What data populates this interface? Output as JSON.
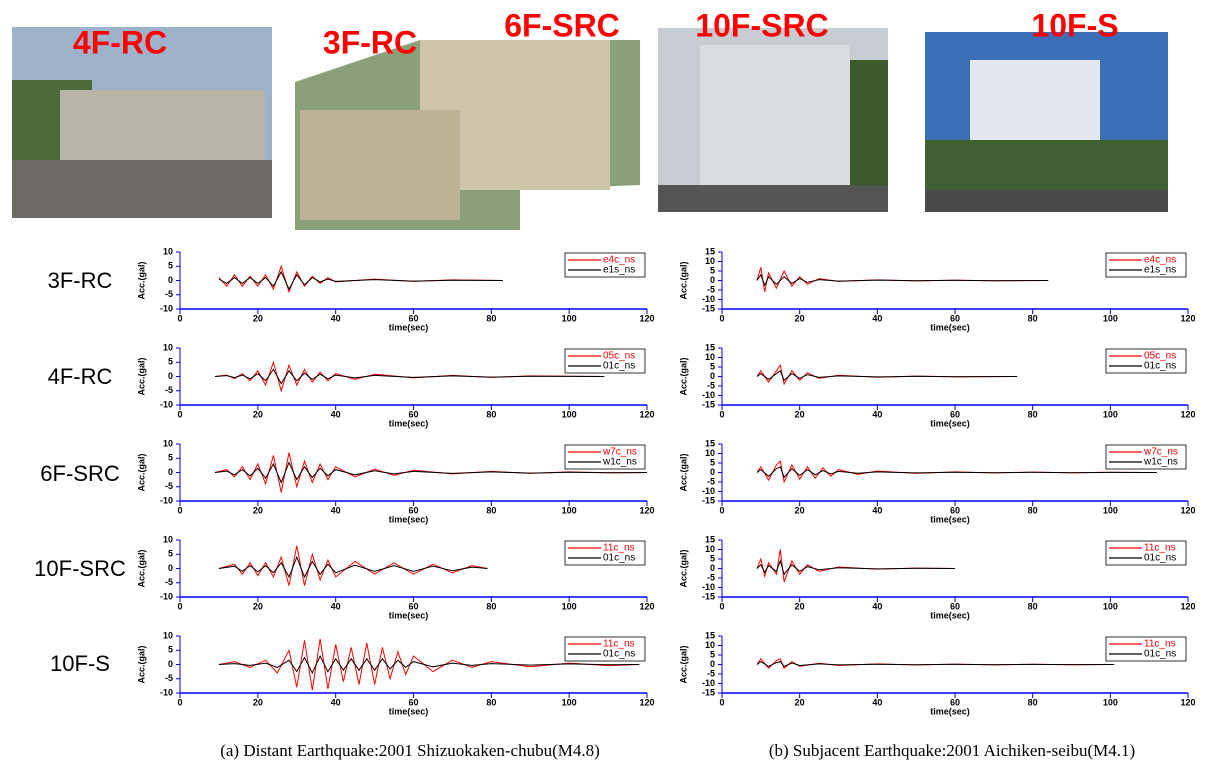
{
  "photos": [
    {
      "label": "4F-RC"
    },
    {
      "label": "3F-RC"
    },
    {
      "label": "6F-SRC"
    },
    {
      "label": "10F-SRC"
    },
    {
      "label": "10F-S"
    }
  ],
  "row_labels": [
    "3F-RC",
    "4F-RC",
    "6F-SRC",
    "10F-SRC",
    "10F-S"
  ],
  "captions": [
    "(a) Distant Earthquake:2001 Shizuokaken-chubu(M4.8)",
    "(b) Subjacent Earthquake:2001 Aichiken-seibu(M4.1)"
  ],
  "chart_data": [
    {
      "type": "line",
      "xlabel": "time(sec)",
      "ylabel": "Acc.(gal)",
      "xlim": [
        0,
        120
      ],
      "xticks": [
        0,
        20,
        40,
        60,
        80,
        100,
        120
      ],
      "ylim": [
        -10,
        10
      ],
      "yticks": [
        -10,
        -5,
        0,
        5,
        10
      ],
      "legend": "upper right",
      "x": [
        10,
        12,
        14,
        16,
        18,
        20,
        22,
        24,
        26,
        28,
        30,
        32,
        34,
        36,
        38,
        40,
        50,
        60,
        70,
        83
      ],
      "series": [
        {
          "name": "e4c_ns",
          "color": "#ff0000",
          "values": [
            1,
            -2,
            2,
            -2,
            1.5,
            -2,
            2,
            -3,
            5,
            -4,
            3,
            -2,
            1.5,
            -1,
            1,
            -0.5,
            0.5,
            -0.3,
            0.2,
            0
          ]
        },
        {
          "name": "e1s_ns",
          "color": "#000000",
          "values": [
            0.5,
            -1,
            1,
            -1,
            1,
            -1,
            1,
            -2,
            3,
            -3,
            2,
            -1.5,
            1,
            -0.5,
            0.5,
            -0.3,
            0.3,
            -0.2,
            0.1,
            0
          ]
        }
      ]
    },
    {
      "type": "line",
      "xlabel": "time(sec)",
      "ylabel": "Acc.(gal)",
      "xlim": [
        0,
        120
      ],
      "xticks": [
        0,
        20,
        40,
        60,
        80,
        100,
        120
      ],
      "ylim": [
        -10,
        10
      ],
      "yticks": [
        -10,
        -5,
        0,
        5,
        10
      ],
      "legend": "upper right",
      "x": [
        9,
        12,
        14,
        16,
        18,
        20,
        22,
        24,
        26,
        28,
        30,
        32,
        34,
        36,
        38,
        40,
        45,
        50,
        60,
        70,
        80,
        90,
        109
      ],
      "series": [
        {
          "name": "05c_ns",
          "color": "#ff0000",
          "values": [
            0,
            0.5,
            -0.7,
            1,
            -1.5,
            2,
            -3,
            5,
            -5,
            4,
            -3,
            2.5,
            -2,
            1.5,
            -1.5,
            1,
            -1,
            0.8,
            -0.5,
            0.4,
            -0.3,
            0.2,
            0
          ]
        },
        {
          "name": "01c_ns",
          "color": "#000000",
          "values": [
            0,
            0.3,
            -0.4,
            0.5,
            -0.8,
            1,
            -1.5,
            2.5,
            -2.5,
            2,
            -1.5,
            1.2,
            -1,
            0.8,
            -0.8,
            0.5,
            -0.5,
            0.4,
            -0.3,
            0.2,
            -0.2,
            0.1,
            0
          ]
        }
      ]
    },
    {
      "type": "line",
      "xlabel": "time(sec)",
      "ylabel": "Acc.(gal)",
      "xlim": [
        0,
        120
      ],
      "xticks": [
        0,
        20,
        40,
        60,
        80,
        100,
        120
      ],
      "ylim": [
        -10,
        10
      ],
      "yticks": [
        -10,
        -5,
        0,
        5,
        10
      ],
      "legend": "upper right",
      "x": [
        9,
        12,
        14,
        16,
        18,
        20,
        22,
        24,
        26,
        28,
        30,
        32,
        34,
        36,
        38,
        40,
        45,
        50,
        55,
        60,
        70,
        80,
        90,
        100,
        110,
        120
      ],
      "series": [
        {
          "name": "w7c_ns",
          "color": "#ff0000",
          "values": [
            0,
            1,
            -1.5,
            2,
            -2.5,
            3,
            -4,
            6,
            -7,
            7,
            -5,
            4,
            -3.5,
            3,
            -2.5,
            2,
            -1.5,
            1.2,
            -1,
            0.8,
            -0.5,
            0.4,
            -0.3,
            0.2,
            -0.1,
            0
          ]
        },
        {
          "name": "w1c_ns",
          "color": "#000000",
          "values": [
            0,
            0.5,
            -0.8,
            1,
            -1.2,
            1.5,
            -2,
            3,
            -3.5,
            3.5,
            -2.5,
            2,
            -1.8,
            1.5,
            -1.2,
            1,
            -0.8,
            0.6,
            -0.5,
            0.4,
            -0.3,
            0.2,
            -0.2,
            0.1,
            -0.1,
            0
          ]
        }
      ]
    },
    {
      "type": "line",
      "xlabel": "time(sec)",
      "ylabel": "Acc.(gal)",
      "xlim": [
        0,
        120
      ],
      "xticks": [
        0,
        20,
        40,
        60,
        80,
        100,
        120
      ],
      "ylim": [
        -10,
        10
      ],
      "yticks": [
        -10,
        -5,
        0,
        5,
        10
      ],
      "legend": "upper right",
      "x": [
        10,
        14,
        16,
        18,
        20,
        22,
        24,
        26,
        28,
        30,
        32,
        34,
        36,
        38,
        40,
        45,
        50,
        55,
        60,
        65,
        70,
        75,
        79
      ],
      "series": [
        {
          "name": "11c_ns",
          "color": "#ff0000",
          "values": [
            0,
            1.5,
            -2,
            2,
            -2.5,
            2,
            -3,
            4,
            -6,
            8,
            -6,
            5,
            -4,
            3,
            -3,
            2.5,
            -2,
            2,
            -2,
            1.5,
            -1.5,
            1,
            0
          ]
        },
        {
          "name": "01c_ns",
          "color": "#000000",
          "values": [
            0,
            0.8,
            -1,
            1,
            -1.2,
            1,
            -1.5,
            2,
            -3,
            4,
            -3,
            2.5,
            -2,
            1.5,
            -1.5,
            1.2,
            -1,
            1,
            -1,
            0.8,
            -0.8,
            0.5,
            0
          ]
        }
      ]
    },
    {
      "type": "line",
      "xlabel": "time(sec)",
      "ylabel": "Acc.(gal)",
      "xlim": [
        0,
        120
      ],
      "xticks": [
        0,
        20,
        40,
        60,
        80,
        100,
        120
      ],
      "ylim": [
        -10,
        10
      ],
      "yticks": [
        -10,
        -5,
        0,
        5,
        10
      ],
      "legend": "upper right",
      "x": [
        10,
        14,
        18,
        22,
        25,
        28,
        30,
        32,
        34,
        36,
        38,
        40,
        42,
        44,
        46,
        48,
        50,
        52,
        54,
        56,
        58,
        60,
        65,
        70,
        75,
        80,
        90,
        100,
        110,
        118
      ],
      "series": [
        {
          "name": "11c_ns",
          "color": "#ff0000",
          "values": [
            0,
            1,
            -1,
            1.5,
            -3,
            5,
            -8,
            8.5,
            -9,
            9,
            -8.5,
            7,
            -6,
            6,
            -7,
            7.5,
            -7,
            6,
            -5,
            4.5,
            -3.5,
            3,
            -2.5,
            1.5,
            -1,
            1,
            -0.8,
            0.5,
            -0.4,
            0
          ]
        },
        {
          "name": "01c_ns",
          "color": "#000000",
          "values": [
            0,
            0.3,
            -0.3,
            0.5,
            -1,
            1.5,
            -2.5,
            2.5,
            -3,
            3,
            -2.5,
            2,
            -2,
            2,
            -2,
            2,
            -2,
            2,
            -1.5,
            1.5,
            -1,
            1,
            -0.8,
            0.5,
            -0.3,
            0.3,
            -0.2,
            0.2,
            -0.1,
            0
          ]
        }
      ]
    },
    {
      "type": "line",
      "xlabel": "time(sec)",
      "ylabel": "Acc.(gal)",
      "xlim": [
        0,
        120
      ],
      "xticks": [
        0,
        20,
        40,
        60,
        80,
        100,
        120
      ],
      "ylim": [
        -15,
        15
      ],
      "yticks": [
        -15,
        -10,
        -5,
        0,
        5,
        10,
        15
      ],
      "legend": "upper right",
      "x": [
        9,
        10,
        11,
        12,
        14,
        16,
        18,
        20,
        22,
        25,
        30,
        40,
        50,
        60,
        70,
        84
      ],
      "series": [
        {
          "name": "e4c_ns",
          "color": "#ff0000",
          "values": [
            0,
            7,
            -6,
            4,
            -4,
            5,
            -3,
            2,
            -2,
            1,
            -0.5,
            0.3,
            -0.2,
            0.1,
            -0.1,
            0
          ]
        },
        {
          "name": "e1s_ns",
          "color": "#000000",
          "values": [
            0,
            3,
            -2.5,
            2,
            -2,
            2,
            -1.5,
            1,
            -1,
            0.5,
            -0.3,
            0.2,
            -0.1,
            0.1,
            -0.1,
            0
          ]
        }
      ]
    },
    {
      "type": "line",
      "xlabel": "time(sec)",
      "ylabel": "Acc.(gal)",
      "xlim": [
        0,
        120
      ],
      "xticks": [
        0,
        20,
        40,
        60,
        80,
        100,
        120
      ],
      "ylim": [
        -15,
        15
      ],
      "yticks": [
        -15,
        -10,
        -5,
        0,
        5,
        10,
        15
      ],
      "legend": "upper right",
      "x": [
        9,
        10,
        12,
        14,
        15,
        16,
        18,
        20,
        22,
        25,
        30,
        40,
        50,
        60,
        76
      ],
      "series": [
        {
          "name": "05c_ns",
          "color": "#ff0000",
          "values": [
            0,
            3,
            -3,
            3,
            6,
            -4,
            3,
            -2,
            2,
            -1,
            0.7,
            -0.4,
            0.2,
            -0.1,
            0
          ]
        },
        {
          "name": "01c_ns",
          "color": "#000000",
          "values": [
            0,
            1.5,
            -1.5,
            1.5,
            3,
            -2,
            1.5,
            -1,
            1,
            -0.5,
            0.3,
            -0.2,
            0.1,
            -0.1,
            0
          ]
        }
      ]
    },
    {
      "type": "line",
      "xlabel": "time(sec)",
      "ylabel": "Acc.(gal)",
      "xlim": [
        0,
        120
      ],
      "xticks": [
        0,
        20,
        40,
        60,
        80,
        100,
        120
      ],
      "ylim": [
        -15,
        15
      ],
      "yticks": [
        -15,
        -10,
        -5,
        0,
        5,
        10,
        15
      ],
      "legend": "upper right",
      "x": [
        9,
        10,
        12,
        14,
        15,
        16,
        18,
        20,
        22,
        24,
        26,
        28,
        30,
        35,
        40,
        50,
        60,
        70,
        80,
        90,
        100,
        112
      ],
      "series": [
        {
          "name": "w7c_ns",
          "color": "#ff0000",
          "values": [
            0,
            3,
            -4,
            4,
            6,
            -5,
            4,
            -3.5,
            3,
            -3,
            2.5,
            -2,
            1.5,
            -1,
            0.8,
            -0.5,
            0.3,
            -0.2,
            0.2,
            -0.1,
            0.1,
            0
          ]
        },
        {
          "name": "w1c_ns",
          "color": "#000000",
          "values": [
            0,
            1.5,
            -2,
            2,
            3,
            -2.5,
            2,
            -1.5,
            1.5,
            -1.2,
            1,
            -0.8,
            0.6,
            -0.4,
            0.3,
            -0.2,
            0.1,
            -0.1,
            0.1,
            -0.1,
            0.05,
            0
          ]
        }
      ]
    },
    {
      "type": "line",
      "xlabel": "time(sec)",
      "ylabel": "Acc.(gal)",
      "xlim": [
        0,
        120
      ],
      "xticks": [
        0,
        20,
        40,
        60,
        80,
        100,
        120
      ],
      "ylim": [
        -15,
        15
      ],
      "yticks": [
        -15,
        -10,
        -5,
        0,
        5,
        10,
        15
      ],
      "legend": "upper right",
      "x": [
        9,
        10,
        11,
        12,
        14,
        15,
        16,
        18,
        20,
        22,
        25,
        30,
        40,
        50,
        60
      ],
      "series": [
        {
          "name": "11c_ns",
          "color": "#ff0000",
          "values": [
            0,
            5,
            -4,
            3,
            -3,
            10,
            -7,
            4,
            -3,
            2,
            -1.5,
            0.8,
            -0.3,
            0.2,
            0
          ]
        },
        {
          "name": "01c_ns",
          "color": "#000000",
          "values": [
            0,
            2,
            -2,
            1.5,
            -1.5,
            4,
            -3,
            2,
            -1.5,
            1,
            -0.7,
            0.4,
            -0.2,
            0.1,
            0
          ]
        }
      ]
    },
    {
      "type": "line",
      "xlabel": "time(sec)",
      "ylabel": "Acc.(gal)",
      "xlim": [
        0,
        120
      ],
      "xticks": [
        0,
        20,
        40,
        60,
        80,
        100,
        120
      ],
      "ylim": [
        -15,
        15
      ],
      "yticks": [
        -15,
        -10,
        -5,
        0,
        5,
        10,
        15
      ],
      "legend": "upper right",
      "x": [
        9,
        10,
        12,
        14,
        15,
        16,
        18,
        20,
        25,
        30,
        40,
        50,
        60,
        70,
        80,
        90,
        101
      ],
      "series": [
        {
          "name": "11c_ns",
          "color": "#ff0000",
          "values": [
            0,
            3,
            -2,
            2,
            3,
            -2,
            1.5,
            -1,
            0.7,
            -0.5,
            0.3,
            -0.2,
            0.1,
            -0.1,
            0.1,
            -0.1,
            0
          ]
        },
        {
          "name": "01c_ns",
          "color": "#000000",
          "values": [
            0,
            1.5,
            -1,
            1,
            1.5,
            -1,
            0.8,
            -0.5,
            0.3,
            -0.2,
            0.1,
            -0.1,
            0.1,
            -0.1,
            0.05,
            -0.05,
            0
          ]
        }
      ]
    }
  ]
}
